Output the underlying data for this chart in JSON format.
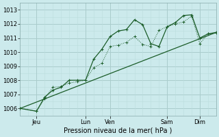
{
  "title": "",
  "xlabel": "Pression niveau de la mer( hPa )",
  "ylabel": "",
  "bg_color": "#cceaec",
  "grid_color_major": "#aacccc",
  "grid_color_minor": "#bbdddd",
  "line_color": "#1a5c28",
  "xlim": [
    0,
    96
  ],
  "ylim": [
    1005.5,
    1013.5
  ],
  "yticks": [
    1006,
    1007,
    1008,
    1009,
    1010,
    1011,
    1012,
    1013
  ],
  "xtick_positions": [
    8,
    32,
    44,
    72,
    88
  ],
  "xtick_labels": [
    "Jeu",
    "Lun",
    "Ven",
    "Sam",
    "Dim"
  ],
  "vlines_major": [
    8,
    32,
    44,
    72,
    88
  ],
  "series1_x": [
    0,
    8,
    12,
    16,
    20,
    24,
    28,
    32,
    36,
    40,
    44,
    48,
    52,
    56,
    60,
    64,
    68,
    72,
    76,
    80,
    84,
    88,
    92,
    96
  ],
  "series1_y": [
    1006.0,
    1005.8,
    1006.8,
    1007.3,
    1007.5,
    1008.0,
    1008.0,
    1008.0,
    1009.5,
    1010.2,
    1011.1,
    1011.5,
    1011.6,
    1012.3,
    1011.95,
    1010.6,
    1010.4,
    1011.8,
    1012.1,
    1012.6,
    1012.65,
    1011.0,
    1011.3,
    1011.4
  ],
  "series2_x": [
    0,
    8,
    12,
    16,
    20,
    24,
    28,
    32,
    36,
    40,
    44,
    48,
    52,
    56,
    60,
    64,
    68,
    72,
    76,
    80,
    84,
    88,
    92,
    96
  ],
  "series2_y": [
    1006.0,
    1005.8,
    1006.7,
    1007.5,
    1007.55,
    1007.8,
    1007.9,
    1008.0,
    1008.9,
    1009.2,
    1010.4,
    1010.5,
    1010.7,
    1011.1,
    1010.55,
    1010.4,
    1011.55,
    1011.8,
    1012.0,
    1012.15,
    1012.55,
    1010.6,
    1011.3,
    1011.35
  ],
  "trend_x": [
    0,
    96
  ],
  "trend_y": [
    1006.0,
    1011.4
  ]
}
